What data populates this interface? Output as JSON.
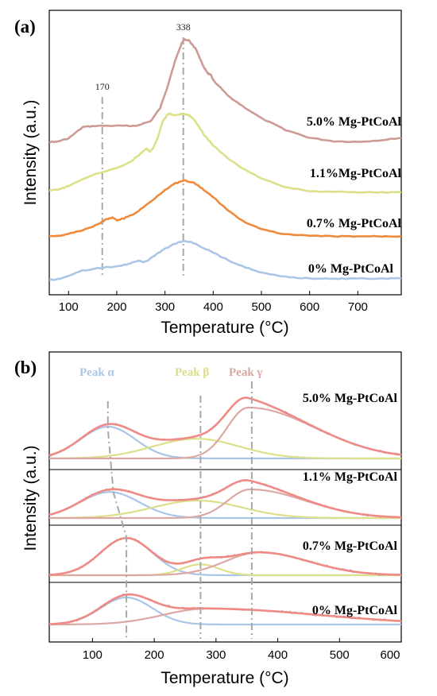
{
  "chart_data": [
    {
      "type": "line",
      "panel": "(a)",
      "xlabel": "Temperature (°C)",
      "ylabel": "Intensity (a.u.)",
      "xlim": [
        60,
        790
      ],
      "xticks": [
        100,
        200,
        300,
        400,
        500,
        600,
        700
      ],
      "xtick_labels": [
        "100",
        "200",
        "300",
        "400",
        "500",
        "600",
        "700"
      ],
      "yticks": false,
      "grid": false,
      "reference_lines": [
        {
          "x": 170,
          "label": "170"
        },
        {
          "x": 338,
          "label": "338"
        }
      ],
      "series": [
        {
          "name": "5.0% Mg-PtCoAl",
          "color": "#CD9A95",
          "x": [
            60,
            75,
            100,
            130,
            160,
            200,
            240,
            270,
            290,
            305,
            320,
            335,
            340,
            350,
            365,
            380,
            390,
            395,
            400,
            430,
            460,
            500,
            550,
            600,
            650,
            700,
            750,
            790
          ],
          "y": [
            0.09,
            0.09,
            0.15,
            0.35,
            0.37,
            0.37,
            0.37,
            0.45,
            0.68,
            1.05,
            1.48,
            1.82,
            1.88,
            1.86,
            1.7,
            1.4,
            1.28,
            1.26,
            1.17,
            0.9,
            0.72,
            0.5,
            0.3,
            0.16,
            0.1,
            0.09,
            0.12,
            0.16
          ]
        },
        {
          "name": "1.1%Mg-PtCoAl",
          "color": "#DDE08A",
          "x": [
            60,
            80,
            100,
            130,
            170,
            200,
            230,
            250,
            262,
            268,
            275,
            285,
            295,
            305,
            310,
            320,
            330,
            340,
            350,
            360,
            370,
            380,
            400,
            430,
            460,
            500,
            550,
            600,
            650,
            700,
            750,
            790
          ],
          "y": [
            0.07,
            0.09,
            0.18,
            0.36,
            0.53,
            0.63,
            0.8,
            1.0,
            1.12,
            1.04,
            1.12,
            1.4,
            1.8,
            1.98,
            2.0,
            1.95,
            1.98,
            2.0,
            1.96,
            1.86,
            1.68,
            1.48,
            1.2,
            0.88,
            0.62,
            0.37,
            0.15,
            0.05,
            0.03,
            0.02,
            0.02,
            0.02
          ]
        },
        {
          "name": "0.7% Mg-PtCoAl",
          "color": "#F08A3A",
          "x": [
            60,
            80,
            100,
            130,
            160,
            175,
            190,
            200,
            215,
            240,
            270,
            300,
            320,
            340,
            360,
            380,
            400,
            430,
            460,
            500,
            550,
            600,
            650,
            700,
            750,
            790
          ],
          "y": [
            0.02,
            0.02,
            0.06,
            0.15,
            0.26,
            0.36,
            0.42,
            0.36,
            0.4,
            0.52,
            0.76,
            1.02,
            1.15,
            1.22,
            1.17,
            1.02,
            0.86,
            0.58,
            0.35,
            0.16,
            0.05,
            0.02,
            0.01,
            0.01,
            0.01,
            0.01
          ]
        },
        {
          "name": "0% Mg-PtCoAl",
          "color": "#A9C6E8",
          "x": [
            60,
            75,
            100,
            130,
            160,
            190,
            220,
            245,
            255,
            262,
            280,
            300,
            320,
            340,
            360,
            380,
            400,
            430,
            460,
            500,
            550,
            600,
            650,
            700,
            750,
            790
          ],
          "y": [
            0.02,
            0.02,
            0.12,
            0.25,
            0.31,
            0.34,
            0.4,
            0.5,
            0.46,
            0.48,
            0.64,
            0.8,
            0.92,
            1.0,
            0.94,
            0.82,
            0.7,
            0.52,
            0.36,
            0.2,
            0.09,
            0.05,
            0.04,
            0.05,
            0.05,
            0.05
          ]
        }
      ]
    },
    {
      "type": "line",
      "panel": "(b)",
      "xlabel": "Temperature (°C)",
      "ylabel": "Intensity (a.u.)",
      "xlim": [
        30,
        600
      ],
      "xticks": [
        100,
        200,
        300,
        400,
        500,
        600
      ],
      "xtick_labels": [
        "100",
        "200",
        "300",
        "400",
        "500",
        "600"
      ],
      "yticks": false,
      "grid": false,
      "peak_labels": [
        {
          "text": "Peak α",
          "color": "#A9C6E8"
        },
        {
          "text": "Peak β",
          "color": "#D9DC8A"
        },
        {
          "text": "Peak γ",
          "color": "#D9A6A2"
        }
      ],
      "component_colors": {
        "alpha": "#A9C6E8",
        "beta": "#DDE08A",
        "gamma": "#DCA8A3",
        "fit": "#F08A86",
        "raw": "#9A9A9A"
      },
      "samples": [
        {
          "name": "5.0% Mg-PtCoAl",
          "alpha": {
            "center": 125,
            "height": 1.0,
            "width": 44
          },
          "beta": {
            "center": 268,
            "height": 0.62,
            "width": 70
          },
          "gamma": {
            "center": 352,
            "height": 1.6,
            "sigma_left": 34,
            "sigma_right": 108
          }
        },
        {
          "name": "1.1% Mg-PtCoAl",
          "alpha": {
            "center": 128,
            "height": 0.82,
            "width": 48
          },
          "beta": {
            "center": 270,
            "height": 0.55,
            "width": 72
          },
          "gamma": {
            "center": 355,
            "height": 0.9,
            "sigma_left": 36,
            "sigma_right": 90
          }
        },
        {
          "name": "0.7% Mg-PtCoAl",
          "alpha": {
            "center": 155,
            "height": 1.3,
            "width": 42
          },
          "beta": {
            "center": 275,
            "height": 0.38,
            "width": 30
          },
          "gamma": {
            "center": 370,
            "height": 0.8,
            "sigma_left": 55,
            "sigma_right": 80
          }
        },
        {
          "name": "0% Mg-PtCoAl",
          "alpha": {
            "center": 155,
            "height": 0.85,
            "width": 42
          },
          "beta": {
            "center": 0,
            "height": 0.0,
            "width": 1
          },
          "gamma": {
            "center": 285,
            "height": 0.5,
            "sigma_left": 70,
            "sigma_right": 180
          }
        }
      ]
    }
  ]
}
